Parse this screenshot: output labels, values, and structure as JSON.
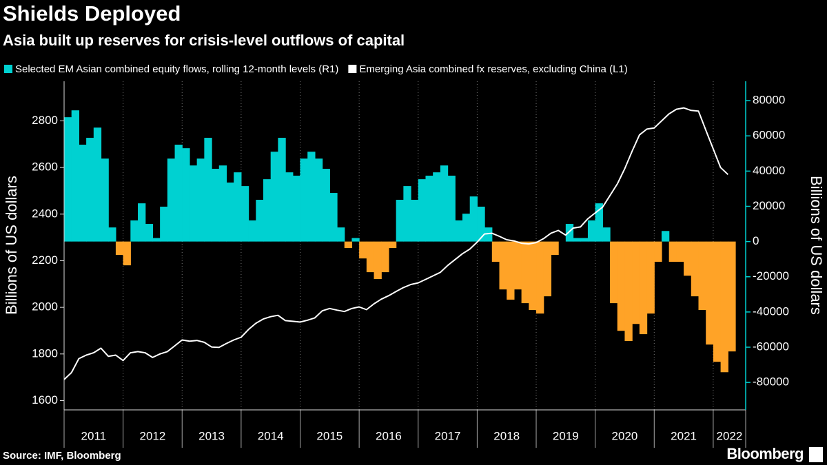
{
  "chart_data": {
    "type": "area-line",
    "title": "Shields Deployed",
    "subtitle": "Asia built up reserves for crisis-level outflows of capital",
    "source": "Source: IMF, Bloomberg",
    "brand": "Bloomberg",
    "ylabel": "Billions of US dollars",
    "y2label": "Billions of US dollars",
    "x": [
      2011,
      2011.125,
      2011.25,
      2011.375,
      2011.5,
      2011.625,
      2011.75,
      2011.875,
      2012,
      2012.125,
      2012.25,
      2012.375,
      2012.5,
      2012.625,
      2012.75,
      2012.875,
      2013,
      2013.125,
      2013.25,
      2013.375,
      2013.5,
      2013.625,
      2013.75,
      2013.875,
      2014,
      2014.125,
      2014.25,
      2014.375,
      2014.5,
      2014.625,
      2014.75,
      2014.875,
      2015,
      2015.125,
      2015.25,
      2015.375,
      2015.5,
      2015.625,
      2015.75,
      2015.875,
      2016,
      2016.125,
      2016.25,
      2016.375,
      2016.5,
      2016.625,
      2016.75,
      2016.875,
      2017,
      2017.125,
      2017.25,
      2017.375,
      2017.5,
      2017.625,
      2017.75,
      2017.875,
      2018,
      2018.125,
      2018.25,
      2018.375,
      2018.5,
      2018.625,
      2018.75,
      2018.875,
      2019,
      2019.125,
      2019.25,
      2019.375,
      2019.5,
      2019.625,
      2019.75,
      2019.875,
      2020,
      2020.125,
      2020.25,
      2020.375,
      2020.5,
      2020.625,
      2020.75,
      2020.875,
      2021,
      2021.125,
      2021.25,
      2021.375,
      2021.5,
      2021.625,
      2021.75,
      2021.875,
      2022,
      2022.125,
      2022.25
    ],
    "series": [
      {
        "name": "Selected EM Asian combined equity flows, rolling 12-month levels (R1)",
        "color": "#00d1d1",
        "negative_color": "#ffa327",
        "axis": "y2",
        "values": [
          70600,
          74500,
          55000,
          58900,
          64700,
          47100,
          8000,
          -7600,
          -13500,
          12000,
          21700,
          10000,
          2000,
          19800,
          47100,
          55000,
          53000,
          43200,
          47100,
          58900,
          41300,
          43200,
          33500,
          39300,
          31500,
          12000,
          23700,
          35400,
          51000,
          58900,
          39300,
          37400,
          47100,
          51000,
          47100,
          41300,
          27600,
          8000,
          -3700,
          2000,
          -9600,
          -17400,
          -21300,
          -17400,
          -3700,
          23700,
          31500,
          23700,
          35400,
          37400,
          39300,
          43200,
          37400,
          12000,
          15800,
          25600,
          19800,
          8000,
          -11500,
          -27200,
          -33000,
          -27200,
          -35000,
          -38900,
          -40900,
          -31100,
          -7600,
          0,
          10000,
          2000,
          2000,
          12000,
          21700,
          8000,
          -35000,
          -50700,
          -56500,
          -46800,
          -52600,
          -40900,
          -11500,
          6000,
          -11500,
          -11500,
          -19400,
          -31100,
          -38900,
          -58500,
          -68300,
          -74200,
          -62400
        ]
      },
      {
        "name": "Emerging Asia combined fx reserves, excluding China (L1)",
        "color": "#ffffff",
        "axis": "y",
        "values": [
          1690,
          1720,
          1780,
          1795,
          1805,
          1825,
          1790,
          1795,
          1772,
          1805,
          1810,
          1805,
          1785,
          1800,
          1810,
          1835,
          1860,
          1855,
          1858,
          1850,
          1830,
          1828,
          1845,
          1860,
          1872,
          1905,
          1932,
          1950,
          1960,
          1966,
          1943,
          1940,
          1937,
          1945,
          1955,
          1985,
          1995,
          1988,
          1982,
          1995,
          2002,
          1990,
          2015,
          2035,
          2050,
          2068,
          2085,
          2098,
          2105,
          2120,
          2135,
          2150,
          2180,
          2205,
          2230,
          2250,
          2280,
          2315,
          2318,
          2305,
          2290,
          2285,
          2275,
          2272,
          2278,
          2295,
          2318,
          2330,
          2310,
          2340,
          2345,
          2380,
          2405,
          2430,
          2480,
          2530,
          2595,
          2670,
          2740,
          2765,
          2770,
          2800,
          2830,
          2850,
          2856,
          2845,
          2842,
          2760,
          2680,
          2600,
          2570
        ]
      }
    ],
    "xlim": [
      2011,
      2022.55
    ],
    "xticks": [
      {
        "value": 2011,
        "label": "2011"
      },
      {
        "value": 2012,
        "label": "2012"
      },
      {
        "value": 2013,
        "label": "2013"
      },
      {
        "value": 2014,
        "label": "2014"
      },
      {
        "value": 2015,
        "label": "2015"
      },
      {
        "value": 2016,
        "label": "2016"
      },
      {
        "value": 2017,
        "label": "2017"
      },
      {
        "value": 2018,
        "label": "2018"
      },
      {
        "value": 2019,
        "label": "2019"
      },
      {
        "value": 2020,
        "label": "2020"
      },
      {
        "value": 2021,
        "label": "2021"
      },
      {
        "value": 2022,
        "label": "2022"
      }
    ],
    "ylim": [
      1560,
      2970
    ],
    "yticks": [
      1600,
      1800,
      2000,
      2200,
      2400,
      2600,
      2800
    ],
    "y2lim": [
      -95600,
      91000
    ],
    "y2ticks": [
      -80000,
      -60000,
      -40000,
      -20000,
      0,
      20000,
      40000,
      60000,
      80000
    ],
    "y2_axis_color": "#00d1d1",
    "grid": "x"
  }
}
